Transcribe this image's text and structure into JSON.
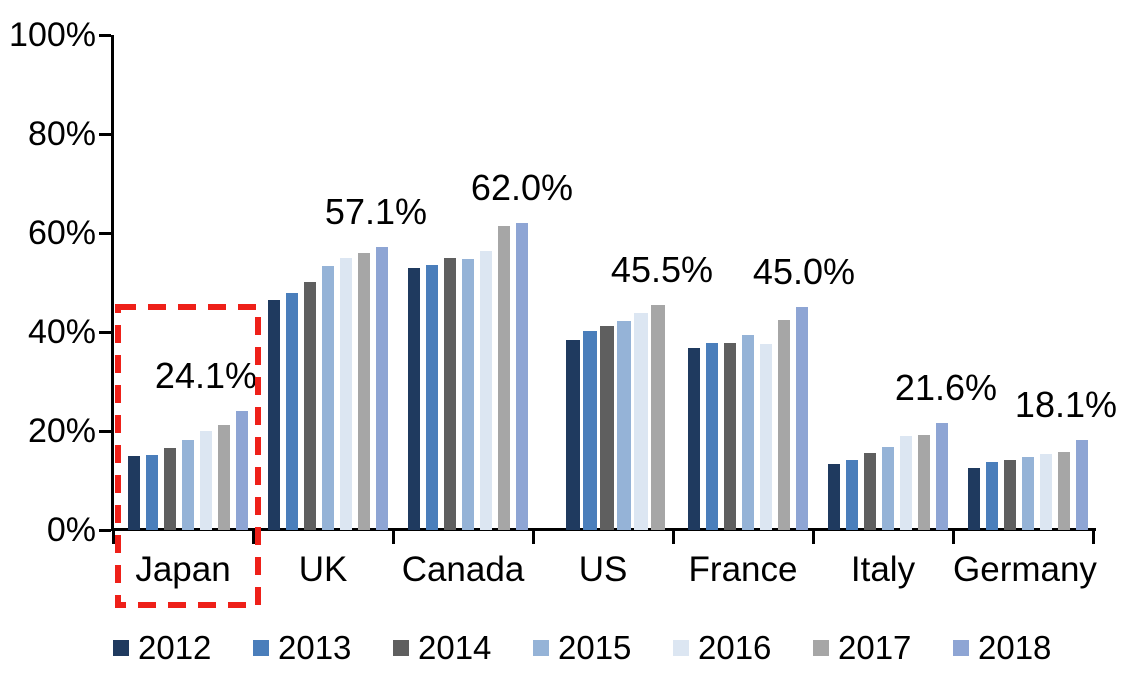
{
  "chart_data": {
    "type": "bar",
    "title": "",
    "xlabel": "",
    "ylabel": "",
    "ylim": [
      0,
      100
    ],
    "grid": false,
    "legend_position": "bottom",
    "y_ticks": [
      "100%",
      "80%",
      "60%",
      "40%",
      "20%",
      "0%"
    ],
    "categories": [
      "Japan",
      "UK",
      "Canada",
      "US",
      "France",
      "Italy",
      "Germany"
    ],
    "series": [
      {
        "name": "2012",
        "color": "#1f3a5f",
        "values": [
          14.9,
          46.4,
          53.0,
          38.4,
          36.7,
          13.3,
          12.5
        ]
      },
      {
        "name": "2013",
        "color": "#4a7ebb",
        "values": [
          15.1,
          47.8,
          53.5,
          40.3,
          37.8,
          14.1,
          13.8
        ]
      },
      {
        "name": "2014",
        "color": "#5f5f5f",
        "values": [
          16.6,
          50.0,
          55.0,
          41.3,
          37.8,
          15.5,
          14.2
        ]
      },
      {
        "name": "2015",
        "color": "#95b3d7",
        "values": [
          18.1,
          53.3,
          54.8,
          42.3,
          39.4,
          16.8,
          14.7
        ]
      },
      {
        "name": "2016",
        "color": "#dce6f2",
        "values": [
          20.0,
          54.9,
          56.4,
          43.8,
          37.5,
          19.0,
          15.4
        ]
      },
      {
        "name": "2017",
        "color": "#a6a6a6",
        "values": [
          21.2,
          56.0,
          61.5,
          45.5,
          42.5,
          19.2,
          15.8
        ]
      },
      {
        "name": "2018",
        "color": "#8ea5d4",
        "values": [
          24.1,
          57.1,
          62.0,
          null,
          45.0,
          21.6,
          18.1
        ]
      }
    ],
    "data_labels": [
      "24.1%",
      "57.1%",
      "62.0%",
      "45.5%",
      "45.0%",
      "21.6%",
      "18.1%"
    ],
    "legend": [
      "2012",
      "2013",
      "2014",
      "2015",
      "2016",
      "2017",
      "2018"
    ],
    "annotation": {
      "type": "dashed-box",
      "target": "Japan",
      "color": "#ee2019"
    }
  }
}
